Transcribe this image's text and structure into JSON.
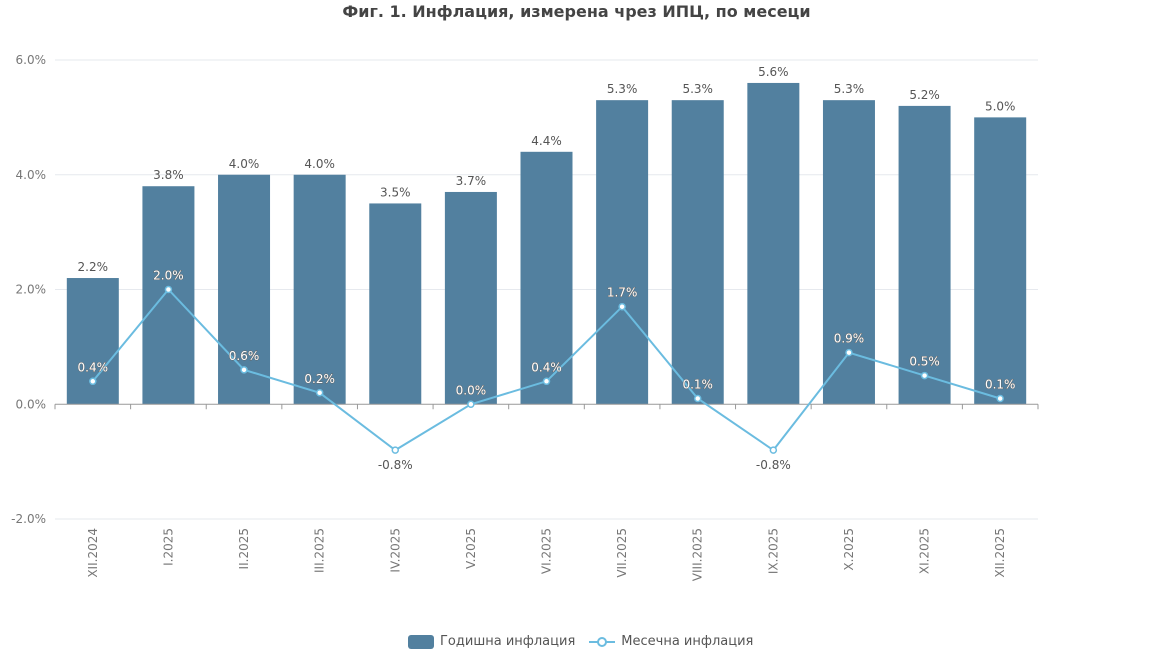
{
  "title": "Фиг. 1. Инфлация, измерена чрез ИПЦ, по месеци",
  "colors": {
    "bar": "#52809f",
    "line": "#6bbce0",
    "grid": "#e6e9ee",
    "axis": "#999999",
    "tick_text": "#777777",
    "label_text": "#555555"
  },
  "legend": {
    "bar_label": "Годишна инфлация",
    "line_label": "Месечна инфлация"
  },
  "chart_data": {
    "type": "bar",
    "title": "Фиг. 1. Инфлация, измерена чрез ИПЦ, по месеци",
    "xlabel": "",
    "ylabel": "",
    "ylim": [
      -2.0,
      6.0
    ],
    "yticks": [
      "-2.0%",
      "0.0%",
      "2.0%",
      "4.0%",
      "6.0%"
    ],
    "ytick_values": [
      -2.0,
      0.0,
      2.0,
      4.0,
      6.0
    ],
    "grid": true,
    "legend_position": "bottom",
    "categories": [
      "XII.2024",
      "I.2025",
      "II.2025",
      "III.2025",
      "IV.2025",
      "V.2025",
      "VI.2025",
      "VII.2025",
      "VIII.2025",
      "IX.2025",
      "X.2025",
      "XI.2025",
      "XII.2025"
    ],
    "series": [
      {
        "name": "Годишна инфлация",
        "type": "bar",
        "values": [
          2.2,
          3.8,
          4.0,
          4.0,
          3.5,
          3.7,
          4.4,
          5.3,
          5.3,
          5.6,
          5.3,
          5.2,
          5.0
        ]
      },
      {
        "name": "Месечна инфлация",
        "type": "line",
        "values": [
          0.4,
          2.0,
          0.6,
          0.2,
          -0.8,
          0.0,
          0.4,
          1.7,
          0.1,
          -0.8,
          0.9,
          0.5,
          0.1
        ]
      }
    ]
  }
}
